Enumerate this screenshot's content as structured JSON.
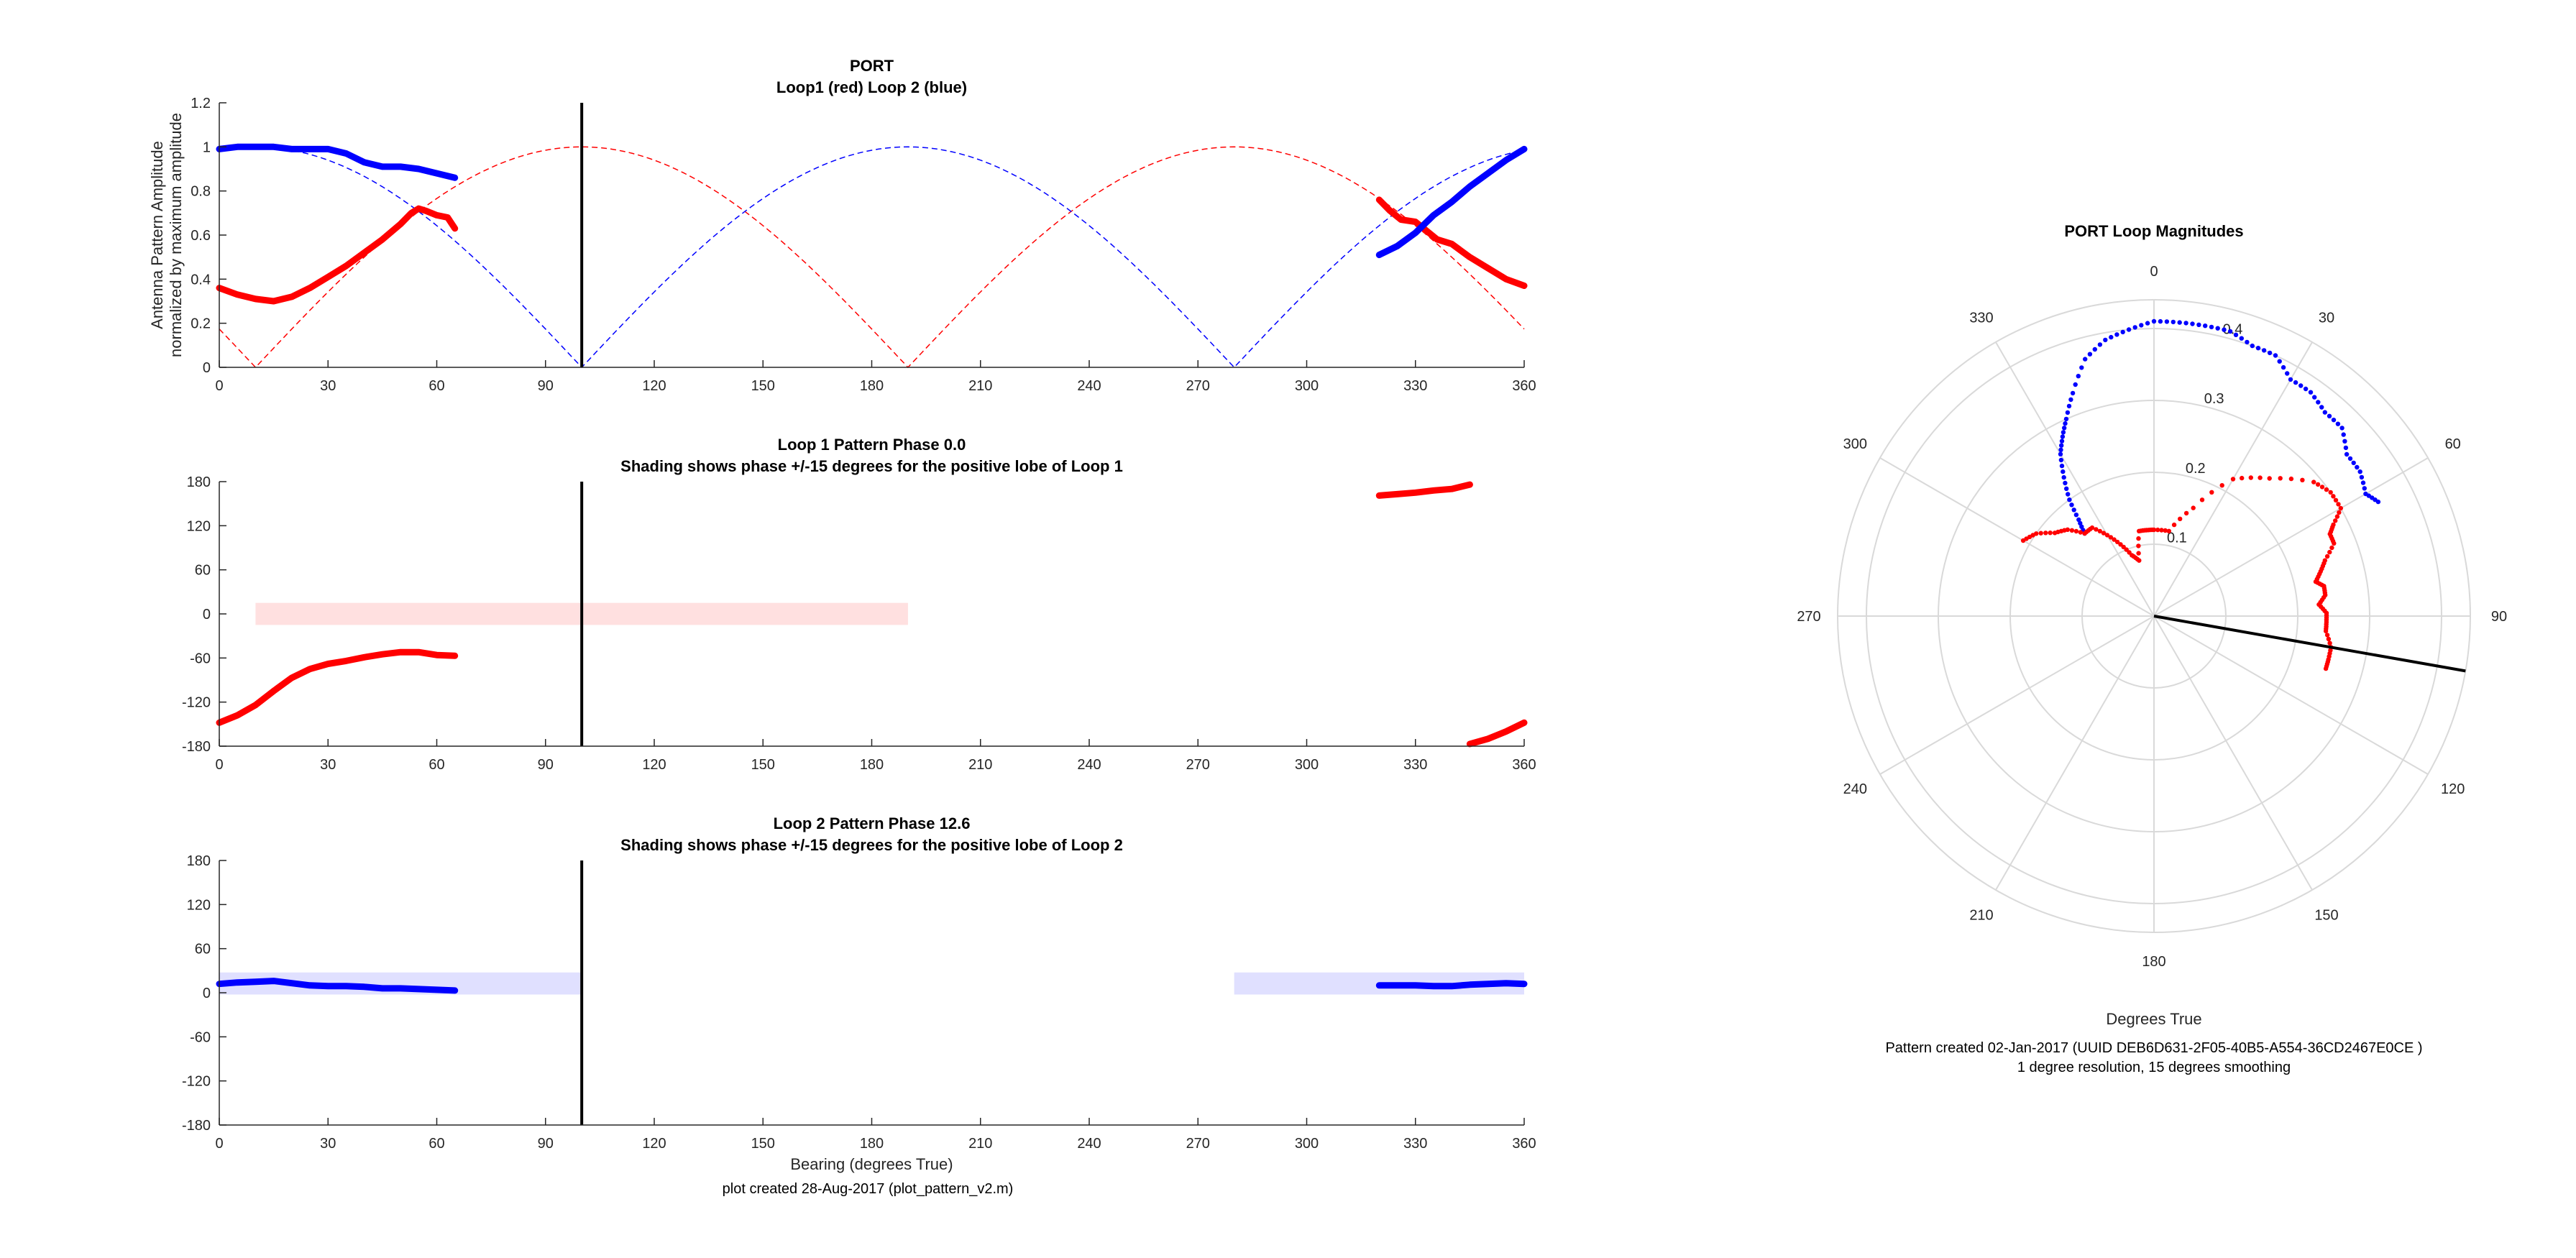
{
  "footer_left": "plot created 28-Aug-2017 (plot_pattern_v2.m)",
  "chart_data": [
    {
      "type": "line",
      "title": "PORT",
      "subtitle": "Loop1 (red) Loop 2 (blue)",
      "ylabel": "Antenna Pattern Amplitude",
      "ylabel2": "normalized by maximum amplitude",
      "xlabel": "",
      "xlim": [
        0,
        360
      ],
      "ylim": [
        0,
        1.2
      ],
      "xticks": [
        "0",
        "30",
        "60",
        "90",
        "120",
        "150",
        "180",
        "210",
        "240",
        "270",
        "300",
        "330",
        "360"
      ],
      "yticks": [
        "0",
        "0.2",
        "0.4",
        "0.6",
        "0.8",
        "1",
        "1.2"
      ],
      "grid": false,
      "marker_bearing": 100,
      "colors": {
        "loop1": "#ff0000",
        "loop2": "#0000ff",
        "marker": "#000000"
      },
      "theory": [
        {
          "color": "#ff0000",
          "null_bearings": [
            10,
            190
          ],
          "peak_bearings": [
            100,
            280
          ]
        },
        {
          "color": "#0000ff",
          "null_bearings": [
            100,
            280
          ],
          "peak_bearings": [
            10,
            190
          ]
        }
      ],
      "series": [
        {
          "color": "#ff0000",
          "segments": [
            [
              [
                0,
                0.36
              ],
              [
                5,
                0.33
              ],
              [
                10,
                0.31
              ],
              [
                15,
                0.3
              ],
              [
                20,
                0.32
              ],
              [
                25,
                0.36
              ],
              [
                30,
                0.41
              ],
              [
                35,
                0.46
              ],
              [
                40,
                0.52
              ],
              [
                45,
                0.58
              ],
              [
                50,
                0.65
              ],
              [
                53,
                0.7
              ],
              [
                55,
                0.72
              ],
              [
                57,
                0.71
              ],
              [
                60,
                0.69
              ],
              [
                63,
                0.68
              ],
              [
                65,
                0.63
              ]
            ],
            [
              [
                320,
                0.76
              ],
              [
                323,
                0.71
              ],
              [
                326,
                0.67
              ],
              [
                330,
                0.66
              ],
              [
                333,
                0.62
              ],
              [
                336,
                0.58
              ],
              [
                340,
                0.56
              ],
              [
                345,
                0.5
              ],
              [
                350,
                0.45
              ],
              [
                355,
                0.4
              ],
              [
                360,
                0.37
              ]
            ]
          ]
        },
        {
          "color": "#0000ff",
          "segments": [
            [
              [
                0,
                0.99
              ],
              [
                5,
                1.0
              ],
              [
                10,
                1.0
              ],
              [
                15,
                1.0
              ],
              [
                20,
                0.99
              ],
              [
                25,
                0.99
              ],
              [
                30,
                0.99
              ],
              [
                35,
                0.97
              ],
              [
                40,
                0.93
              ],
              [
                45,
                0.91
              ],
              [
                50,
                0.91
              ],
              [
                55,
                0.9
              ],
              [
                60,
                0.88
              ],
              [
                65,
                0.86
              ]
            ],
            [
              [
                320,
                0.51
              ],
              [
                325,
                0.55
              ],
              [
                330,
                0.61
              ],
              [
                335,
                0.69
              ],
              [
                340,
                0.75
              ],
              [
                345,
                0.82
              ],
              [
                350,
                0.88
              ],
              [
                355,
                0.94
              ],
              [
                360,
                0.99
              ]
            ]
          ]
        }
      ]
    },
    {
      "type": "line",
      "title": "Loop 1 Pattern Phase 0.0",
      "subtitle": "Shading shows phase +/-15 degrees for the positive lobe of Loop 1",
      "xlabel": "",
      "ylabel": "",
      "xlim": [
        0,
        360
      ],
      "ylim": [
        -180,
        180
      ],
      "xticks": [
        "0",
        "30",
        "60",
        "90",
        "120",
        "150",
        "180",
        "210",
        "240",
        "270",
        "300",
        "330",
        "360"
      ],
      "yticks": [
        "-180",
        "-120",
        "-60",
        "0",
        "60",
        "120",
        "180"
      ],
      "grid": false,
      "marker_bearing": 100,
      "shading": [
        {
          "x0": 10,
          "x1": 190,
          "y0": -15,
          "y1": 15,
          "color": "#ffe0e0"
        }
      ],
      "series": [
        {
          "color": "#ff0000",
          "segments": [
            [
              [
                0,
                -148
              ],
              [
                5,
                -138
              ],
              [
                10,
                -124
              ],
              [
                15,
                -105
              ],
              [
                20,
                -87
              ],
              [
                25,
                -75
              ],
              [
                30,
                -68
              ],
              [
                35,
                -64
              ],
              [
                40,
                -59
              ],
              [
                45,
                -55
              ],
              [
                50,
                -52
              ],
              [
                55,
                -52
              ],
              [
                60,
                -56
              ],
              [
                65,
                -57
              ]
            ],
            [
              [
                320,
                161
              ],
              [
                325,
                163
              ],
              [
                330,
                165
              ],
              [
                335,
                168
              ],
              [
                340,
                170
              ],
              [
                345,
                176
              ]
            ],
            [
              [
                345,
                -177
              ],
              [
                350,
                -170
              ],
              [
                355,
                -160
              ],
              [
                360,
                -148
              ]
            ]
          ]
        }
      ]
    },
    {
      "type": "line",
      "title": "Loop 2 Pattern Phase 12.6",
      "subtitle": "Shading shows phase +/-15 degrees for the positive lobe of Loop 2",
      "xlabel": "Bearing (degrees True)",
      "ylabel": "",
      "xlim": [
        0,
        360
      ],
      "ylim": [
        -180,
        180
      ],
      "xticks": [
        "0",
        "30",
        "60",
        "90",
        "120",
        "150",
        "180",
        "210",
        "240",
        "270",
        "300",
        "330",
        "360"
      ],
      "yticks": [
        "-180",
        "-120",
        "-60",
        "0",
        "60",
        "120",
        "180"
      ],
      "grid": false,
      "marker_bearing": 100,
      "shading": [
        {
          "x0": 0,
          "x1": 100,
          "y0": -2.4,
          "y1": 27.6,
          "color": "#e0e0ff"
        },
        {
          "x0": 280,
          "x1": 360,
          "y0": -2.4,
          "y1": 27.6,
          "color": "#e0e0ff"
        }
      ],
      "series": [
        {
          "color": "#0000ff",
          "segments": [
            [
              [
                0,
                12
              ],
              [
                5,
                14
              ],
              [
                10,
                15
              ],
              [
                15,
                16
              ],
              [
                20,
                13
              ],
              [
                25,
                10
              ],
              [
                30,
                9
              ],
              [
                35,
                9
              ],
              [
                40,
                8
              ],
              [
                45,
                6
              ],
              [
                50,
                6
              ],
              [
                55,
                5
              ],
              [
                60,
                4
              ],
              [
                65,
                3
              ]
            ],
            [
              [
                320,
                10
              ],
              [
                325,
                10
              ],
              [
                330,
                10
              ],
              [
                335,
                9
              ],
              [
                340,
                9
              ],
              [
                345,
                11
              ],
              [
                350,
                12
              ],
              [
                355,
                13
              ],
              [
                360,
                12
              ]
            ]
          ]
        }
      ]
    },
    {
      "type": "polar",
      "title": "PORT Loop Magnitudes",
      "xlabel": "Degrees True",
      "note_line1": "Pattern created 02-Jan-2017 (UUID DEB6D631-2F05-40B5-A554-36CD2467E0CE )",
      "note_line2": "1 degree resolution, 15 degrees smoothing",
      "rmax": 0.44,
      "rticks": [
        "0.1",
        "0.2",
        "0.3",
        "0.4"
      ],
      "rtick_values": [
        0.1,
        0.2,
        0.3,
        0.4
      ],
      "theta_labels": [
        "0",
        "30",
        "60",
        "90",
        "120",
        "150",
        "180",
        "210",
        "240",
        "270",
        "300",
        "330"
      ],
      "marker_bearing": 100,
      "series": [
        {
          "color": "#0000ff",
          "points": [
            [
              320,
              0.15
            ],
            [
              322,
              0.17
            ],
            [
              324,
              0.2
            ],
            [
              327,
              0.23
            ],
            [
              330,
              0.26
            ],
            [
              333,
              0.28
            ],
            [
              336,
              0.3
            ],
            [
              340,
              0.33
            ],
            [
              345,
              0.37
            ],
            [
              350,
              0.39
            ],
            [
              355,
              0.4
            ],
            [
              0,
              0.41
            ],
            [
              5,
              0.41
            ],
            [
              10,
              0.41
            ],
            [
              15,
              0.41
            ],
            [
              20,
              0.4
            ],
            [
              25,
              0.4
            ],
            [
              30,
              0.38
            ],
            [
              35,
              0.38
            ],
            [
              40,
              0.37
            ],
            [
              45,
              0.37
            ],
            [
              50,
              0.35
            ],
            [
              55,
              0.35
            ],
            [
              60,
              0.34
            ],
            [
              63,
              0.35
            ]
          ]
        },
        {
          "color": "#ff0000",
          "points": [
            [
              300,
              0.21
            ],
            [
              305,
              0.2
            ],
            [
              310,
              0.18
            ],
            [
              315,
              0.17
            ],
            [
              320,
              0.15
            ],
            [
              325,
              0.15
            ],
            [
              330,
              0.13
            ],
            [
              335,
              0.11
            ],
            [
              340,
              0.09
            ],
            [
              345,
              0.08
            ],
            [
              350,
              0.12
            ],
            [
              355,
              0.12
            ],
            [
              0,
              0.12
            ],
            [
              10,
              0.12
            ],
            [
              20,
              0.16
            ],
            [
              30,
              0.22
            ],
            [
              40,
              0.25
            ],
            [
              50,
              0.29
            ],
            [
              55,
              0.3
            ],
            [
              60,
              0.3
            ],
            [
              63,
              0.28
            ],
            [
              65,
              0.27
            ],
            [
              68,
              0.27
            ],
            [
              72,
              0.25
            ],
            [
              75,
              0.24
            ],
            [
              78,
              0.23
            ],
            [
              80,
              0.24
            ],
            [
              83,
              0.24
            ],
            [
              86,
              0.23
            ],
            [
              89,
              0.24
            ],
            [
              92,
              0.24
            ],
            [
              95,
              0.24
            ],
            [
              100,
              0.25
            ],
            [
              104,
              0.25
            ],
            [
              107,
              0.25
            ]
          ]
        }
      ]
    }
  ]
}
